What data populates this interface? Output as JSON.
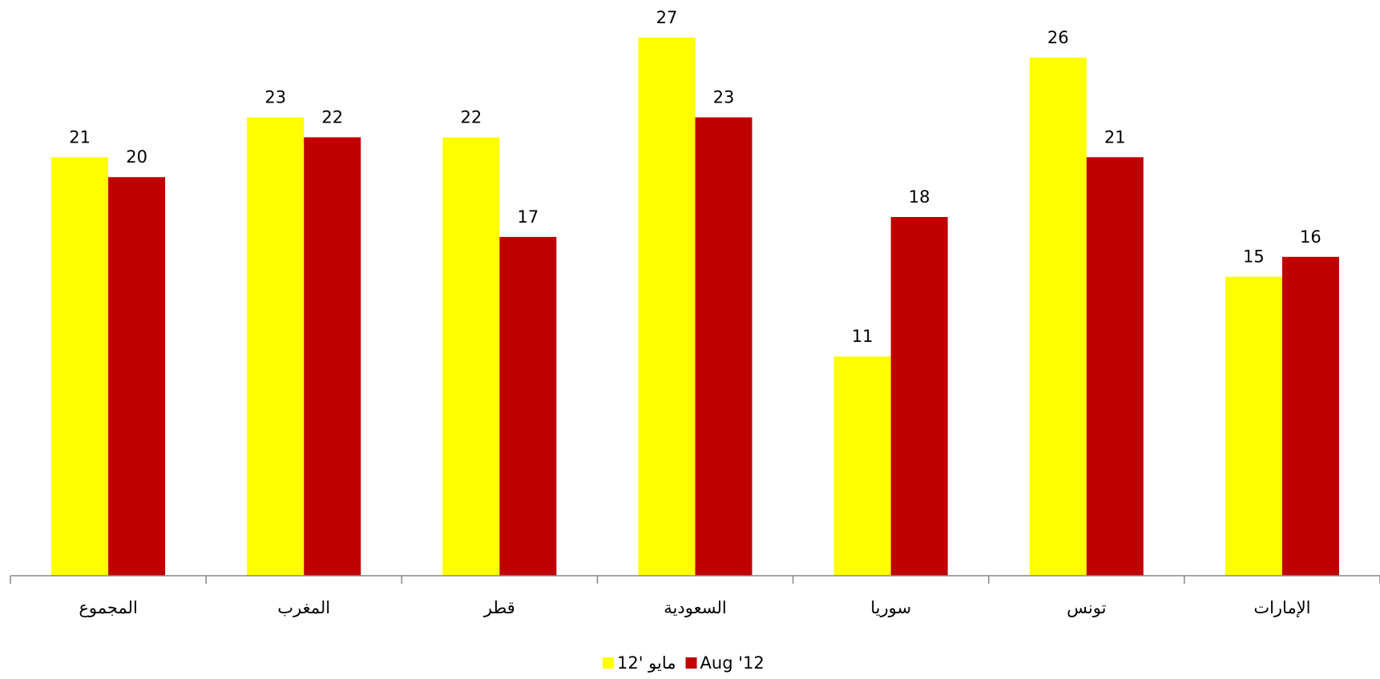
{
  "chart_data": {
    "type": "bar",
    "categories": [
      "المجموع",
      "المغرب",
      "قطر",
      "السعودية",
      "سوريا",
      "تونس",
      "الإمارات"
    ],
    "series": [
      {
        "name": "مايو '12",
        "color": "#ffff00",
        "values": [
          21,
          23,
          22,
          27,
          11,
          26,
          15
        ]
      },
      {
        "name": "Aug '12",
        "color": "#c00000",
        "values": [
          20,
          22,
          17,
          23,
          18,
          21,
          16
        ]
      }
    ],
    "legend": "bottom"
  }
}
